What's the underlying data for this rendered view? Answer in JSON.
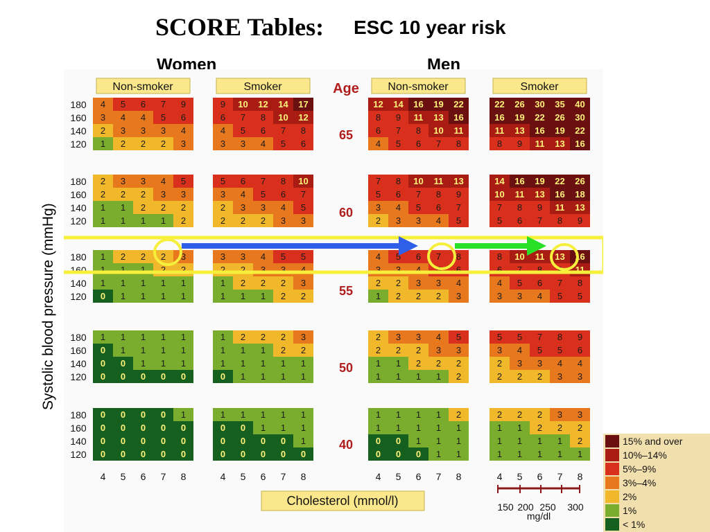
{
  "title": {
    "serif": "SCORE Tables:",
    "sans": "ESC 10 year risk"
  },
  "labels": {
    "women": "Women",
    "men": "Men",
    "ylabel": "Systolic blood pressure (mmHg)",
    "xlabel": "Cholesterol (mmol/l)",
    "age_header": "Age",
    "nonsmoker": "Non-smoker",
    "smoker": "Smoker",
    "mgdl_unit": "mg/dl"
  },
  "chart_data": {
    "type": "heatmap",
    "title": "SCORE Tables: ESC 10 year risk",
    "xlabel": "Cholesterol (mmol/l)",
    "ylabel": "Systolic blood pressure (mmHg)",
    "groups": [
      "Women Non-smoker",
      "Women Smoker",
      "Men Non-smoker",
      "Men Smoker"
    ],
    "ages": [
      65,
      60,
      55,
      50,
      40
    ],
    "sbp": [
      180,
      160,
      140,
      120
    ],
    "cholesterol": [
      4,
      5,
      6,
      7,
      8
    ],
    "cholesterol_mgdl": [
      150,
      200,
      250,
      300
    ],
    "values": {
      "65": [
        [
          [
            4,
            5,
            6,
            7,
            9
          ],
          [
            3,
            4,
            4,
            5,
            6
          ],
          [
            2,
            3,
            3,
            3,
            4
          ],
          [
            1,
            2,
            2,
            2,
            3
          ]
        ],
        [
          [
            9,
            10,
            12,
            14,
            17
          ],
          [
            6,
            7,
            8,
            10,
            12
          ],
          [
            4,
            5,
            6,
            7,
            8
          ],
          [
            3,
            3,
            4,
            5,
            6
          ]
        ],
        [
          [
            12,
            14,
            16,
            19,
            22
          ],
          [
            8,
            9,
            11,
            13,
            16
          ],
          [
            6,
            7,
            8,
            10,
            11
          ],
          [
            4,
            5,
            6,
            7,
            8
          ]
        ],
        [
          [
            22,
            26,
            30,
            35,
            40
          ],
          [
            16,
            19,
            22,
            26,
            30
          ],
          [
            11,
            13,
            16,
            19,
            22
          ],
          [
            8,
            9,
            11,
            13,
            16
          ]
        ]
      ],
      "60": [
        [
          [
            2,
            3,
            3,
            4,
            5
          ],
          [
            2,
            2,
            2,
            3,
            3
          ],
          [
            1,
            1,
            2,
            2,
            2
          ],
          [
            1,
            1,
            1,
            1,
            2
          ]
        ],
        [
          [
            5,
            6,
            7,
            8,
            10
          ],
          [
            3,
            4,
            5,
            6,
            7
          ],
          [
            2,
            3,
            3,
            4,
            5
          ],
          [
            2,
            2,
            2,
            3,
            3
          ]
        ],
        [
          [
            7,
            8,
            10,
            11,
            13
          ],
          [
            5,
            6,
            7,
            8,
            9
          ],
          [
            3,
            4,
            5,
            6,
            7
          ],
          [
            2,
            3,
            3,
            4,
            5
          ]
        ],
        [
          [
            14,
            16,
            19,
            22,
            26
          ],
          [
            10,
            11,
            13,
            16,
            18
          ],
          [
            7,
            8,
            9,
            11,
            13
          ],
          [
            5,
            6,
            7,
            8,
            9
          ]
        ]
      ],
      "55": [
        [
          [
            1,
            2,
            2,
            2,
            3
          ],
          [
            1,
            1,
            1,
            2,
            2
          ],
          [
            1,
            1,
            1,
            1,
            1
          ],
          [
            0,
            1,
            1,
            1,
            1
          ]
        ],
        [
          [
            3,
            3,
            4,
            5,
            5
          ],
          [
            2,
            2,
            3,
            3,
            4
          ],
          [
            1,
            2,
            2,
            2,
            3
          ],
          [
            1,
            1,
            1,
            2,
            2
          ]
        ],
        [
          [
            4,
            5,
            6,
            7,
            8
          ],
          [
            3,
            3,
            4,
            5,
            6
          ],
          [
            2,
            2,
            3,
            3,
            4
          ],
          [
            1,
            2,
            2,
            2,
            3
          ]
        ],
        [
          [
            8,
            10,
            11,
            13,
            16
          ],
          [
            6,
            7,
            8,
            9,
            11
          ],
          [
            4,
            5,
            6,
            7,
            8
          ],
          [
            3,
            3,
            4,
            5,
            5
          ]
        ]
      ],
      "50": [
        [
          [
            1,
            1,
            1,
            1,
            1
          ],
          [
            0,
            1,
            1,
            1,
            1
          ],
          [
            0,
            0,
            1,
            1,
            1
          ],
          [
            0,
            0,
            0,
            0,
            0
          ]
        ],
        [
          [
            1,
            2,
            2,
            2,
            3
          ],
          [
            1,
            1,
            1,
            2,
            2
          ],
          [
            1,
            1,
            1,
            1,
            1
          ],
          [
            0,
            1,
            1,
            1,
            1
          ]
        ],
        [
          [
            2,
            3,
            3,
            4,
            5
          ],
          [
            2,
            2,
            2,
            3,
            3
          ],
          [
            1,
            1,
            2,
            2,
            2
          ],
          [
            1,
            1,
            1,
            1,
            2
          ]
        ],
        [
          [
            5,
            5,
            7,
            8,
            9
          ],
          [
            3,
            4,
            5,
            5,
            6
          ],
          [
            2,
            3,
            3,
            4,
            4
          ],
          [
            2,
            2,
            2,
            3,
            3
          ]
        ]
      ],
      "40": [
        [
          [
            0,
            0,
            0,
            0,
            1
          ],
          [
            0,
            0,
            0,
            0,
            0
          ],
          [
            0,
            0,
            0,
            0,
            0
          ],
          [
            0,
            0,
            0,
            0,
            0
          ]
        ],
        [
          [
            1,
            1,
            1,
            1,
            1
          ],
          [
            0,
            0,
            1,
            1,
            1
          ],
          [
            0,
            0,
            0,
            0,
            1
          ],
          [
            0,
            0,
            0,
            0,
            0
          ]
        ],
        [
          [
            1,
            1,
            1,
            1,
            2
          ],
          [
            1,
            1,
            1,
            1,
            1
          ],
          [
            0,
            0,
            1,
            1,
            1
          ],
          [
            0,
            0,
            0,
            1,
            1
          ]
        ],
        [
          [
            2,
            2,
            2,
            3,
            3
          ],
          [
            1,
            1,
            2,
            2,
            2
          ],
          [
            1,
            1,
            1,
            1,
            2
          ],
          [
            1,
            1,
            1,
            1,
            1
          ]
        ]
      ]
    },
    "annotations": [
      {
        "note": "highlighted row",
        "age": 55,
        "sbp": 180
      },
      {
        "note": "circled cell",
        "group": "Women Non-smoker",
        "cholesterol": 7,
        "value": 2
      },
      {
        "note": "circled cell",
        "group": "Men Non-smoker",
        "cholesterol": 7,
        "value": 7
      },
      {
        "note": "circled cell",
        "group": "Men Smoker",
        "cholesterol": 7,
        "value": 13
      }
    ],
    "legend": [
      {
        "label": "15% and over",
        "color": "#6a1010"
      },
      {
        "label": "10%–14%",
        "color": "#a81c14"
      },
      {
        "label": "5%–9%",
        "color": "#d8301c"
      },
      {
        "label": "3%–4%",
        "color": "#e8781e"
      },
      {
        "label": "2%",
        "color": "#f2b82c"
      },
      {
        "label": "1%",
        "color": "#7aac2e"
      },
      {
        "label": "< 1%",
        "color": "#15601e"
      }
    ]
  },
  "colors": {
    "header_fill": "#fbe88c",
    "highlight": "#f6f03c",
    "arrow_blue": "#2f5fe8",
    "arrow_green": "#28e028"
  }
}
